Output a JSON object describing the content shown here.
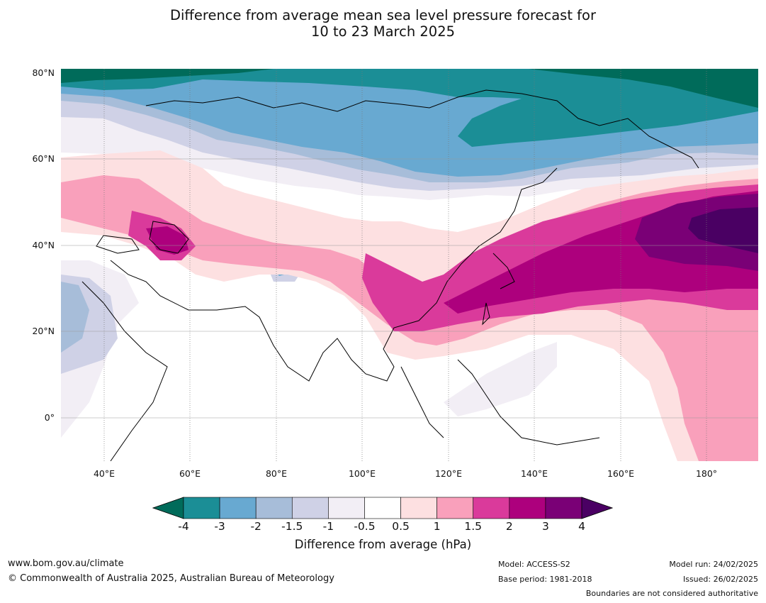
{
  "title_line1": "Difference from average mean sea level pressure forecast for",
  "title_line2": "10 to 23 March 2025",
  "map": {
    "lon_range": [
      30,
      192
    ],
    "lat_range": [
      -10,
      80
    ],
    "lat_labels": [
      {
        "lat": 80,
        "text": "80°N"
      },
      {
        "lat": 60,
        "text": "60°N"
      },
      {
        "lat": 40,
        "text": "40°N"
      },
      {
        "lat": 20,
        "text": "20°N"
      },
      {
        "lat": 0,
        "text": "0°"
      }
    ],
    "lon_labels": [
      {
        "lon": 40,
        "text": "40°E"
      },
      {
        "lon": 60,
        "text": "60°E"
      },
      {
        "lon": 80,
        "text": "80°E"
      },
      {
        "lon": 100,
        "text": "100°E"
      },
      {
        "lon": 120,
        "text": "120°E"
      },
      {
        "lon": 140,
        "text": "140°E"
      },
      {
        "lon": 160,
        "text": "160°E"
      },
      {
        "lon": 180,
        "text": "180°"
      }
    ]
  },
  "colorbar": {
    "title": "Difference from average (hPa)",
    "levels": [
      "-4",
      "-3",
      "-2",
      "-1.5",
      "-1",
      "-0.5",
      "0.5",
      "1",
      "1.5",
      "2",
      "3",
      "4"
    ],
    "colors": [
      "#006b5a",
      "#1b8e96",
      "#68a9d1",
      "#a7bdd9",
      "#cfd1e6",
      "#f2eef5",
      "#ffffff",
      "#fde0e1",
      "#f9a0bb",
      "#da3a9b",
      "#ad007d",
      "#7a0076",
      "#4a0063"
    ]
  },
  "footer": {
    "website": "www.bom.gov.au/climate",
    "copyright": "© Commonwealth of Australia 2025, Australian Bureau of Meteorology",
    "model": "Model: ACCESS-S2",
    "base_period": "Base period: 1981-2018",
    "model_run": "Model run: 24/02/2025",
    "issued": "Issued: 26/02/2025",
    "disclaimer": "Boundaries are not considered authoritative"
  }
}
